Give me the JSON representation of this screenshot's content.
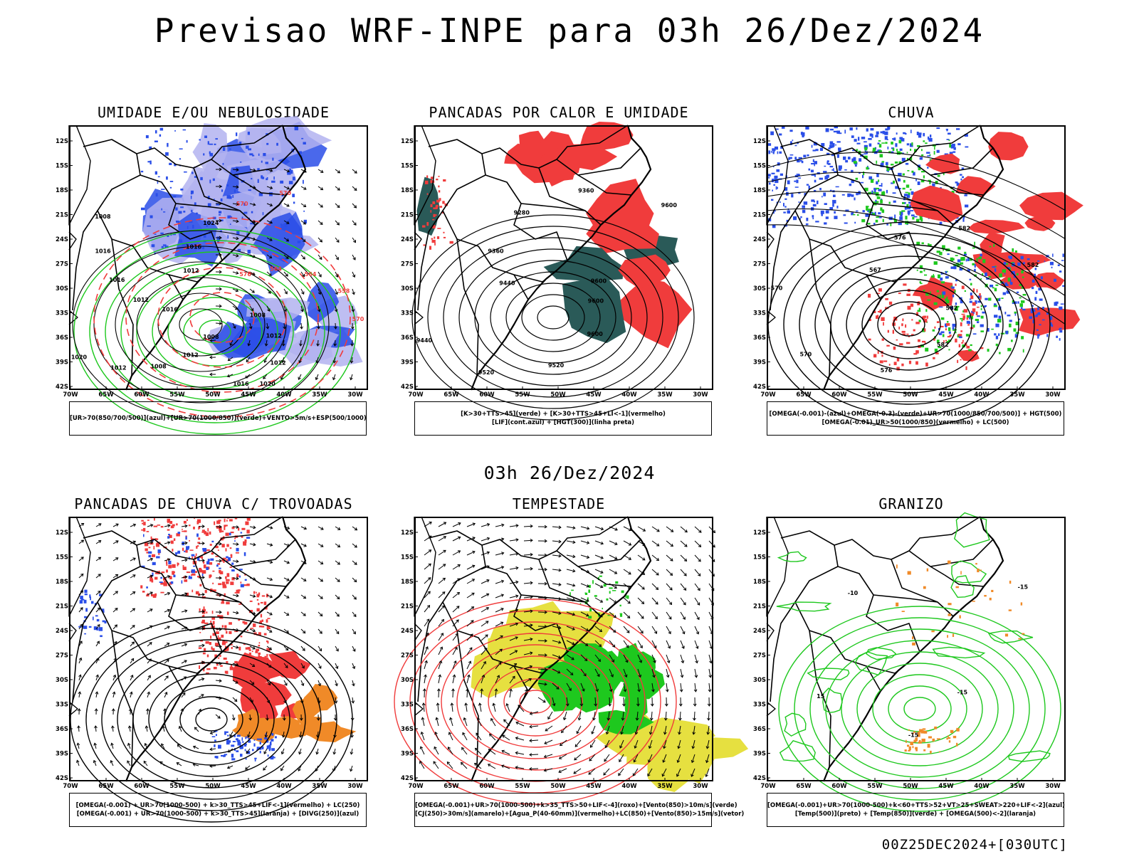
{
  "header": {
    "title": "Previsao WRF-INPE  para 03h 26/Dez/2024",
    "mid_title": "03h 26/Dez/2024",
    "footer": "00Z25DEC2024+[030UTC]"
  },
  "axes": {
    "lat_labels": [
      "12S",
      "15S",
      "18S",
      "21S",
      "24S",
      "27S",
      "30S",
      "33S",
      "36S",
      "39S",
      "42S"
    ],
    "lon_labels": [
      "70W",
      "65W",
      "60W",
      "55W",
      "50W",
      "45W",
      "40W",
      "35W",
      "30W"
    ]
  },
  "colors": {
    "blue": "#2a4ee8",
    "lightblue": "#b3b3f0",
    "green": "#1ec81e",
    "red": "#f03c3c",
    "orange": "#f08a28",
    "yellow": "#e6e040",
    "darkteal": "#2a5a58"
  },
  "panels": [
    {
      "title": "UMIDADE E/OU NEBULOSIDADE",
      "legend": [
        "[UR>70(850/700/500)](azul)+[UR>70(1000/850)](verde)+VENTO>5m/s+ESP(500/1000)"
      ],
      "contour_labels": [
        "1008",
        "1012",
        "1012",
        "1020",
        "1016",
        "1008",
        "1012",
        "1008",
        "1012",
        "1020",
        "1016",
        "1012",
        "1016",
        "1016",
        "1008",
        "1012",
        "1016",
        "1024",
        "570",
        "570",
        "576",
        "564",
        "564",
        "558",
        "570"
      ]
    },
    {
      "title": "PANCADAS POR CALOR E UMIDADE",
      "legend": [
        "[K>30+TTS>45](verde) + [K>30+TTS>45+LI<-1](vermelho)",
        "[LIF](cont.azul) + [HGT(300)](linha preta)"
      ],
      "contour_labels": [
        "9600",
        "9600",
        "9520",
        "9520",
        "9440",
        "9440",
        "9360",
        "9280",
        "9360",
        "9600",
        "9600"
      ]
    },
    {
      "title": "CHUVA",
      "legend": [
        "[OMEGA(-0.001)-(azul)+OMEGA(-0.3)-(verde)+UR>70(1000/850/700/500)] + HGT(500)",
        "[OMEGA(-0.01)_UR>50(1000/850)(vermelho) + LC(500)"
      ],
      "contour_labels": [
        "582",
        "582",
        "576",
        "570",
        "570",
        "567",
        "576",
        "582",
        "582"
      ]
    },
    {
      "title": "PANCADAS DE CHUVA C/ TROVOADAS",
      "legend": [
        "[OMEGA(-0.001) + UR>70(1000-500) + k>30_TTS>45+LIF<-1](vermelho) + LC(250)",
        "[OMEGA(-0.001) + UR>70(1000-500) + k>30_TTS>45](laranja) + [DIVG(250)](azul)"
      ],
      "contour_labels": []
    },
    {
      "title": "TEMPESTADE",
      "legend": [
        "[OMEGA(-0.001)+UR>70(1000-500)+k>35_TTS>50+LIF<-4](roxo)+[Vento(850)>10m/s](verde)",
        "[CJ(250)>30m/s](amarelo)+[Agua_P(40-60mm)](vermelho)+LC(850)+[Vento(850)>15m/s](vetor)"
      ],
      "contour_labels": []
    },
    {
      "title": "GRANIZO",
      "legend": [
        "[OMEGA(-0.001)+UR>70(1000-500)+k<60+TTS>52+VT>25+SWEAT>220+LIF<-2](azul)",
        "[Temp(500)](preto) + [Temp(850)](verde) + [OMEGA(500)<-2](laranja)"
      ],
      "contour_labels": [
        "-15",
        "-15",
        "15",
        "-10",
        "-15"
      ]
    }
  ]
}
